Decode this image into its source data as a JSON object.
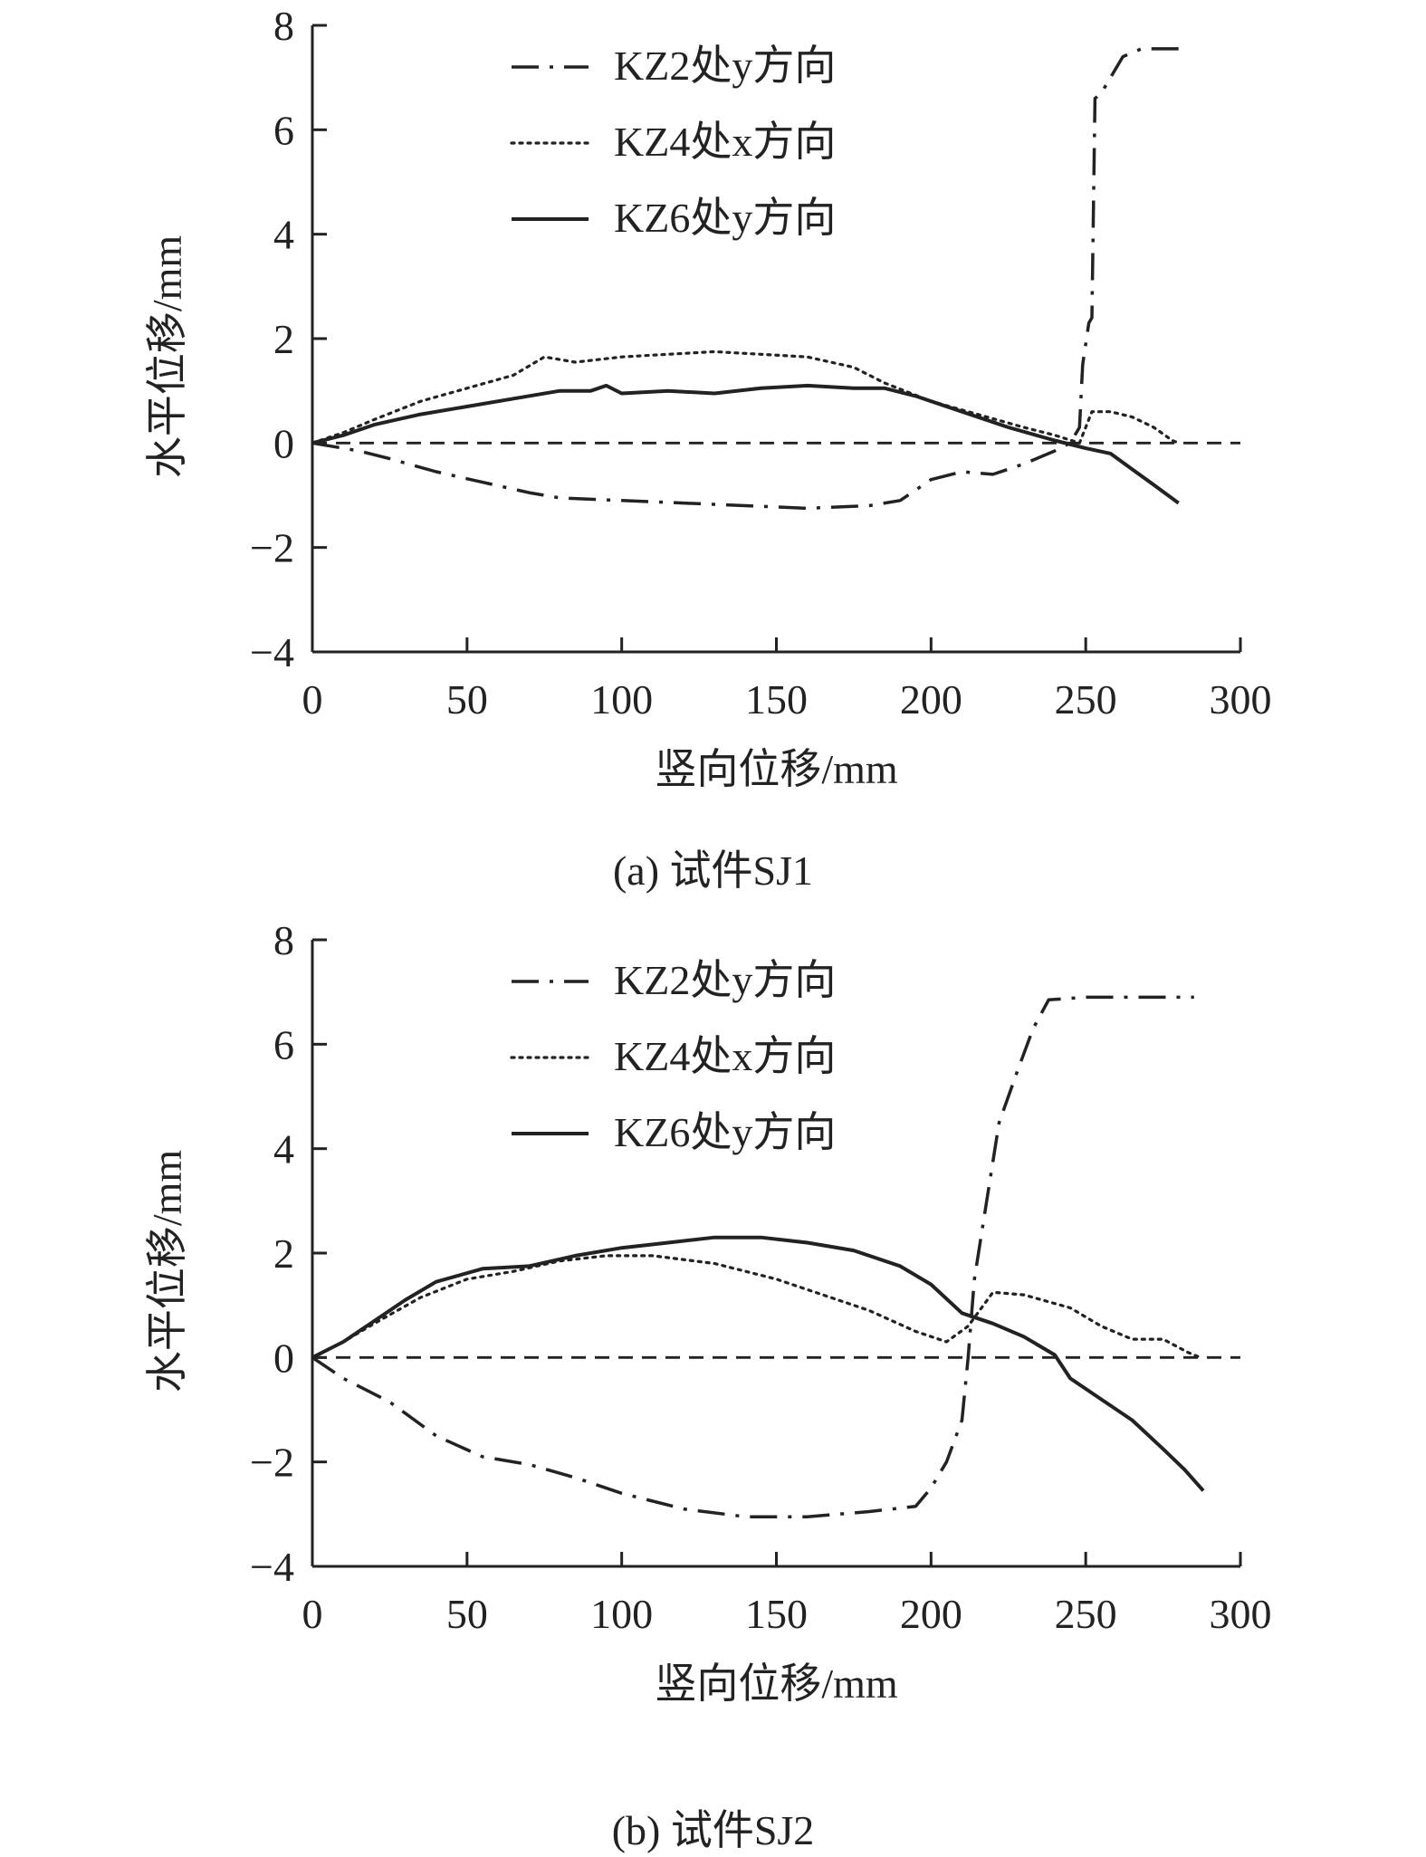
{
  "chart_data": [
    {
      "type": "line",
      "caption": "(a) 试件SJ1",
      "xlabel": "竖向位移/mm",
      "ylabel": "水平位移/mm",
      "xlim": [
        0,
        300
      ],
      "ylim": [
        -4,
        8
      ],
      "xticks": [
        "0",
        "50",
        "100",
        "150",
        "200",
        "250",
        "300"
      ],
      "yticks": [
        "−4",
        "−2",
        "0",
        "2",
        "4",
        "6",
        "8"
      ],
      "legend_position": "top-left",
      "grid": false,
      "zero_line": true,
      "series": [
        {
          "name": "KZ2处y方向",
          "style": "dash-dot",
          "points": [
            [
              0,
              0
            ],
            [
              15,
              -0.15
            ],
            [
              25,
              -0.3
            ],
            [
              40,
              -0.55
            ],
            [
              55,
              -0.75
            ],
            [
              70,
              -0.95
            ],
            [
              80,
              -1.05
            ],
            [
              100,
              -1.1
            ],
            [
              120,
              -1.15
            ],
            [
              140,
              -1.2
            ],
            [
              160,
              -1.25
            ],
            [
              180,
              -1.2
            ],
            [
              190,
              -1.1
            ],
            [
              200,
              -0.7
            ],
            [
              210,
              -0.55
            ],
            [
              220,
              -0.6
            ],
            [
              230,
              -0.4
            ],
            [
              240,
              -0.15
            ],
            [
              245,
              0
            ],
            [
              248,
              0.3
            ],
            [
              249,
              1.5
            ],
            [
              251,
              2.3
            ],
            [
              252,
              2.4
            ],
            [
              253,
              6.6
            ],
            [
              255,
              6.7
            ],
            [
              258,
              7.0
            ],
            [
              262,
              7.4
            ],
            [
              268,
              7.55
            ],
            [
              280,
              7.55
            ]
          ]
        },
        {
          "name": "KZ4处x方向",
          "style": "dotted",
          "points": [
            [
              0,
              0
            ],
            [
              10,
              0.2
            ],
            [
              20,
              0.45
            ],
            [
              35,
              0.8
            ],
            [
              50,
              1.05
            ],
            [
              65,
              1.3
            ],
            [
              75,
              1.65
            ],
            [
              85,
              1.55
            ],
            [
              100,
              1.65
            ],
            [
              115,
              1.7
            ],
            [
              130,
              1.75
            ],
            [
              145,
              1.7
            ],
            [
              160,
              1.65
            ],
            [
              175,
              1.45
            ],
            [
              185,
              1.15
            ],
            [
              200,
              0.8
            ],
            [
              215,
              0.55
            ],
            [
              230,
              0.3
            ],
            [
              240,
              0.15
            ],
            [
              248,
              0
            ],
            [
              252,
              0.6
            ],
            [
              258,
              0.6
            ],
            [
              265,
              0.5
            ],
            [
              272,
              0.3
            ],
            [
              278,
              0.05
            ],
            [
              280,
              0
            ]
          ]
        },
        {
          "name": "KZ6处y方向",
          "style": "solid",
          "points": [
            [
              0,
              0
            ],
            [
              10,
              0.15
            ],
            [
              20,
              0.35
            ],
            [
              35,
              0.55
            ],
            [
              50,
              0.7
            ],
            [
              65,
              0.85
            ],
            [
              80,
              1.0
            ],
            [
              90,
              1.0
            ],
            [
              95,
              1.1
            ],
            [
              100,
              0.95
            ],
            [
              115,
              1.0
            ],
            [
              130,
              0.95
            ],
            [
              145,
              1.05
            ],
            [
              160,
              1.1
            ],
            [
              175,
              1.05
            ],
            [
              185,
              1.05
            ],
            [
              195,
              0.9
            ],
            [
              210,
              0.6
            ],
            [
              225,
              0.3
            ],
            [
              240,
              0.05
            ],
            [
              250,
              -0.1
            ],
            [
              258,
              -0.2
            ],
            [
              265,
              -0.5
            ],
            [
              272,
              -0.8
            ],
            [
              280,
              -1.15
            ]
          ]
        },
        {
          "name": "",
          "style": "dashed",
          "points": [
            [
              0,
              0
            ],
            [
              300,
              0
            ]
          ]
        }
      ]
    },
    {
      "type": "line",
      "caption": "(b) 试件SJ2",
      "xlabel": "竖向位移/mm",
      "ylabel": "水平位移/mm",
      "xlim": [
        0,
        300
      ],
      "ylim": [
        -4,
        8
      ],
      "xticks": [
        "0",
        "50",
        "100",
        "150",
        "200",
        "250",
        "300"
      ],
      "yticks": [
        "−4",
        "−2",
        "0",
        "2",
        "4",
        "6",
        "8"
      ],
      "legend_position": "top-left",
      "grid": false,
      "zero_line": true,
      "series": [
        {
          "name": "KZ2处y方向",
          "style": "dash-dot",
          "points": [
            [
              0,
              0
            ],
            [
              10,
              -0.4
            ],
            [
              25,
              -0.85
            ],
            [
              40,
              -1.5
            ],
            [
              55,
              -1.9
            ],
            [
              70,
              -2.05
            ],
            [
              85,
              -2.3
            ],
            [
              100,
              -2.6
            ],
            [
              120,
              -2.9
            ],
            [
              140,
              -3.05
            ],
            [
              160,
              -3.05
            ],
            [
              180,
              -2.95
            ],
            [
              195,
              -2.85
            ],
            [
              200,
              -2.5
            ],
            [
              205,
              -2.0
            ],
            [
              210,
              -1.2
            ],
            [
              212,
              0
            ],
            [
              214,
              1.5
            ],
            [
              218,
              3.0
            ],
            [
              222,
              4.5
            ],
            [
              228,
              5.5
            ],
            [
              233,
              6.3
            ],
            [
              238,
              6.85
            ],
            [
              250,
              6.9
            ],
            [
              270,
              6.9
            ],
            [
              285,
              6.9
            ]
          ]
        },
        {
          "name": "KZ4处x方向",
          "style": "dotted",
          "points": [
            [
              0,
              0
            ],
            [
              10,
              0.3
            ],
            [
              20,
              0.65
            ],
            [
              35,
              1.15
            ],
            [
              50,
              1.5
            ],
            [
              65,
              1.65
            ],
            [
              80,
              1.85
            ],
            [
              95,
              1.95
            ],
            [
              110,
              1.95
            ],
            [
              130,
              1.8
            ],
            [
              150,
              1.5
            ],
            [
              165,
              1.2
            ],
            [
              180,
              0.9
            ],
            [
              195,
              0.5
            ],
            [
              205,
              0.3
            ],
            [
              212,
              0.6
            ],
            [
              220,
              1.25
            ],
            [
              230,
              1.2
            ],
            [
              245,
              0.95
            ],
            [
              255,
              0.6
            ],
            [
              265,
              0.35
            ],
            [
              275,
              0.35
            ],
            [
              283,
              0.1
            ],
            [
              287,
              0
            ]
          ]
        },
        {
          "name": "KZ6处y方向",
          "style": "solid",
          "points": [
            [
              0,
              0
            ],
            [
              10,
              0.3
            ],
            [
              20,
              0.7
            ],
            [
              30,
              1.1
            ],
            [
              40,
              1.45
            ],
            [
              55,
              1.7
            ],
            [
              70,
              1.75
            ],
            [
              85,
              1.95
            ],
            [
              100,
              2.1
            ],
            [
              115,
              2.2
            ],
            [
              130,
              2.3
            ],
            [
              145,
              2.3
            ],
            [
              160,
              2.2
            ],
            [
              175,
              2.05
            ],
            [
              190,
              1.75
            ],
            [
              200,
              1.4
            ],
            [
              210,
              0.85
            ],
            [
              220,
              0.65
            ],
            [
              230,
              0.4
            ],
            [
              240,
              0.05
            ],
            [
              245,
              -0.4
            ],
            [
              255,
              -0.8
            ],
            [
              265,
              -1.2
            ],
            [
              275,
              -1.75
            ],
            [
              282,
              -2.15
            ],
            [
              288,
              -2.55
            ]
          ]
        },
        {
          "name": "",
          "style": "dashed",
          "points": [
            [
              0,
              0
            ],
            [
              300,
              0
            ]
          ]
        }
      ]
    }
  ]
}
